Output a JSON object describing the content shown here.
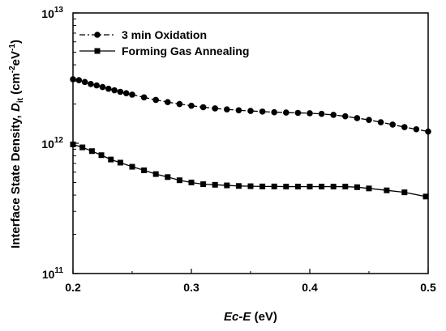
{
  "chart_data": {
    "type": "line",
    "xlabel_parts": {
      "italic": "Ec",
      "rest": "-",
      "italic2": "E",
      "unit": " (eV)"
    },
    "ylabel_parts": {
      "main": "Interface State Density, ",
      "sym": "D",
      "sub": "it",
      "unit_open": " (cm",
      "exp1": "-2",
      "mid": "eV",
      "exp2": "-1",
      "unit_close": ")"
    },
    "xlim": [
      0.2,
      0.5
    ],
    "ylim": [
      100000000000.0,
      10000000000000.0
    ],
    "yscale": "log",
    "x_ticks": [
      "0.2",
      "0.3",
      "0.4",
      "0.5"
    ],
    "y_ticks": [
      {
        "base": "10",
        "exp": "11"
      },
      {
        "base": "10",
        "exp": "12"
      },
      {
        "base": "10",
        "exp": "13"
      }
    ],
    "legend_position": "top-left",
    "series": [
      {
        "name": "3 min Oxidation",
        "marker": "circle",
        "line": "dash-dot",
        "x": [
          0.2,
          0.205,
          0.21,
          0.215,
          0.22,
          0.225,
          0.23,
          0.235,
          0.24,
          0.245,
          0.25,
          0.26,
          0.27,
          0.28,
          0.29,
          0.3,
          0.31,
          0.32,
          0.33,
          0.34,
          0.35,
          0.36,
          0.37,
          0.38,
          0.39,
          0.4,
          0.41,
          0.42,
          0.43,
          0.44,
          0.45,
          0.46,
          0.47,
          0.48,
          0.49,
          0.5
        ],
        "y": [
          3100000000000.0,
          3050000000000.0,
          2950000000000.0,
          2850000000000.0,
          2780000000000.0,
          2700000000000.0,
          2620000000000.0,
          2550000000000.0,
          2480000000000.0,
          2420000000000.0,
          2360000000000.0,
          2250000000000.0,
          2150000000000.0,
          2070000000000.0,
          2000000000000.0,
          1940000000000.0,
          1890000000000.0,
          1850000000000.0,
          1820000000000.0,
          1790000000000.0,
          1770000000000.0,
          1750000000000.0,
          1730000000000.0,
          1720000000000.0,
          1710000000000.0,
          1700000000000.0,
          1680000000000.0,
          1650000000000.0,
          1610000000000.0,
          1560000000000.0,
          1510000000000.0,
          1450000000000.0,
          1390000000000.0,
          1330000000000.0,
          1280000000000.0,
          1230000000000.0
        ]
      },
      {
        "name": "Forming Gas Annealing",
        "marker": "square",
        "line": "solid",
        "x": [
          0.2,
          0.208,
          0.216,
          0.224,
          0.232,
          0.24,
          0.25,
          0.26,
          0.27,
          0.28,
          0.29,
          0.3,
          0.31,
          0.32,
          0.33,
          0.34,
          0.35,
          0.36,
          0.37,
          0.38,
          0.39,
          0.4,
          0.41,
          0.42,
          0.43,
          0.44,
          0.45,
          0.465,
          0.48,
          0.498
        ],
        "y": [
          980000000000.0,
          930000000000.0,
          870000000000.0,
          810000000000.0,
          750000000000.0,
          710000000000.0,
          660000000000.0,
          620000000000.0,
          580000000000.0,
          550000000000.0,
          520000000000.0,
          500000000000.0,
          485000000000.0,
          480000000000.0,
          475000000000.0,
          470000000000.0,
          468000000000.0,
          466000000000.0,
          466000000000.0,
          465000000000.0,
          465000000000.0,
          465000000000.0,
          465000000000.0,
          465000000000.0,
          465000000000.0,
          460000000000.0,
          450000000000.0,
          435000000000.0,
          420000000000.0,
          390000000000.0
        ]
      }
    ]
  }
}
